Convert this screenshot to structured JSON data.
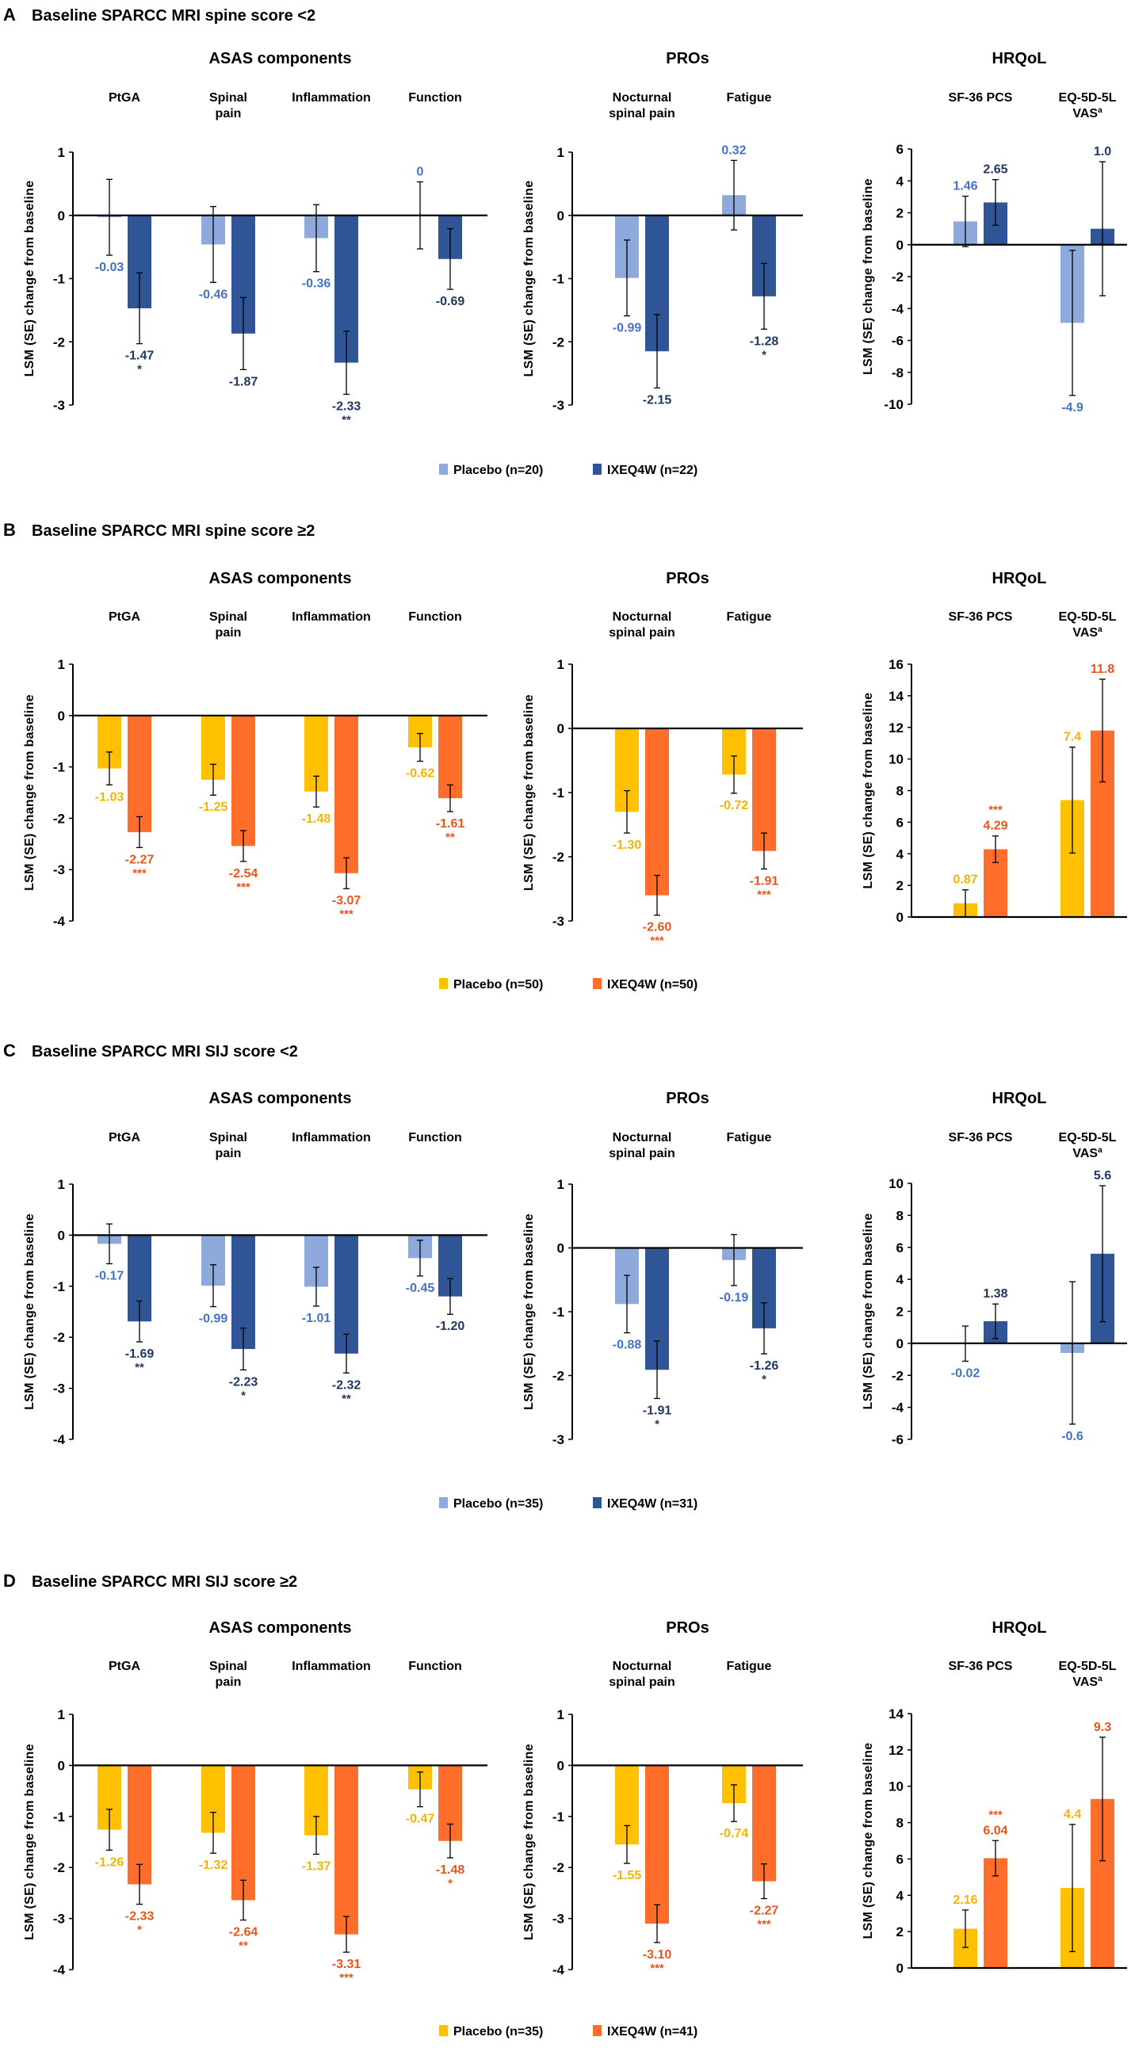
{
  "colors": {
    "blue_placebo": "#8EA9DB",
    "blue_ixe": "#2F5597",
    "blue_placebo_text": "#4472C4",
    "blue_ixe_text": "#203864",
    "yellow_placebo": "#FFC000",
    "orange_ixe": "#FF6D2A",
    "yellow_placebo_text": "#F4B400",
    "orange_ixe_text": "#E8561C"
  },
  "chart_data": [
    {
      "type": "bar",
      "panel": "A",
      "title": "Baseline SPARCC MRI spine score <2",
      "palette": "blue",
      "legend": [
        {
          "name": "Placebo (n=20)",
          "series": "placebo"
        },
        {
          "name": "IXEQ4W (n=22)",
          "series": "ixe"
        }
      ],
      "ylabel": "LSM (SE) change from baseline",
      "groups": [
        {
          "title": "ASAS components",
          "ylim": [
            -3,
            1
          ],
          "yticks": [
            1,
            0,
            -1,
            -2,
            -3
          ],
          "categories": [
            {
              "label": [
                "PtGA"
              ],
              "placebo": {
                "value": -0.03,
                "label": "-0.03",
                "se": 0.6,
                "sig": ""
              },
              "ixe": {
                "value": -1.47,
                "label": "-1.47",
                "se": 0.56,
                "sig": "*"
              }
            },
            {
              "label": [
                "Spinal",
                "pain"
              ],
              "placebo": {
                "value": -0.46,
                "label": "-0.46",
                "se": 0.6,
                "sig": ""
              },
              "ixe": {
                "value": -1.87,
                "label": "-1.87",
                "se": 0.57,
                "sig": ""
              }
            },
            {
              "label": [
                "Inflammation"
              ],
              "placebo": {
                "value": -0.36,
                "label": "-0.36",
                "se": 0.53,
                "sig": ""
              },
              "ixe": {
                "value": -2.33,
                "label": "-2.33",
                "se": 0.5,
                "sig": "**"
              }
            },
            {
              "label": [
                "Function"
              ],
              "placebo": {
                "value": 0,
                "label": "0",
                "se": 0.53,
                "sig": ""
              },
              "ixe": {
                "value": -0.69,
                "label": "-0.69",
                "se": 0.48,
                "sig": ""
              }
            }
          ]
        },
        {
          "title": "PROs",
          "ylim": [
            -3,
            1
          ],
          "yticks": [
            1,
            0,
            -1,
            -2,
            -3
          ],
          "categories": [
            {
              "label": [
                "Nocturnal",
                "spinal pain"
              ],
              "placebo": {
                "value": -0.99,
                "label": "-0.99",
                "se": 0.6,
                "sig": ""
              },
              "ixe": {
                "value": -2.15,
                "label": "-2.15",
                "se": 0.58,
                "sig": ""
              }
            },
            {
              "label": [
                "Fatigue"
              ],
              "placebo": {
                "value": 0.32,
                "label": "0.32",
                "se": 0.55,
                "sig": ""
              },
              "ixe": {
                "value": -1.28,
                "label": "-1.28",
                "se": 0.52,
                "sig": "*"
              }
            }
          ]
        },
        {
          "title": "HRQoL",
          "ylim": [
            -10,
            6
          ],
          "yticks": [
            6,
            4,
            2,
            0,
            -2,
            -4,
            -6,
            -8,
            -10
          ],
          "categories": [
            {
              "label": [
                "SF-36 PCS"
              ],
              "placebo": {
                "value": 1.46,
                "label": "1.46",
                "se": 1.58,
                "sig": ""
              },
              "ixe": {
                "value": 2.65,
                "label": "2.65",
                "se": 1.43,
                "sig": ""
              }
            },
            {
              "label": [
                "EQ-5D-5L",
                "VAS"
              ],
              "superscript": "a",
              "placebo": {
                "value": -4.9,
                "label": "-4.9",
                "se": 4.55,
                "sig": ""
              },
              "ixe": {
                "value": 1.0,
                "label": "1.0",
                "se": 4.2,
                "sig": ""
              }
            }
          ]
        }
      ]
    },
    {
      "type": "bar",
      "panel": "B",
      "title": "Baseline SPARCC MRI spine score ≥2",
      "palette": "orange",
      "legend": [
        {
          "name": "Placebo (n=50)",
          "series": "placebo"
        },
        {
          "name": "IXEQ4W (n=50)",
          "series": "ixe"
        }
      ],
      "ylabel": "LSM (SE) change from baseline",
      "groups": [
        {
          "title": "ASAS components",
          "ylim": [
            -4,
            1
          ],
          "yticks": [
            1,
            0,
            -1,
            -2,
            -3,
            -4
          ],
          "categories": [
            {
              "label": [
                "PtGA"
              ],
              "placebo": {
                "value": -1.03,
                "label": "-1.03",
                "se": 0.32,
                "sig": ""
              },
              "ixe": {
                "value": -2.27,
                "label": "-2.27",
                "se": 0.3,
                "sig": "***"
              }
            },
            {
              "label": [
                "Spinal",
                "pain"
              ],
              "placebo": {
                "value": -1.25,
                "label": "-1.25",
                "se": 0.3,
                "sig": ""
              },
              "ixe": {
                "value": -2.54,
                "label": "-2.54",
                "se": 0.3,
                "sig": "***"
              }
            },
            {
              "label": [
                "Inflammation"
              ],
              "placebo": {
                "value": -1.48,
                "label": "-1.48",
                "se": 0.3,
                "sig": ""
              },
              "ixe": {
                "value": -3.07,
                "label": "-3.07",
                "se": 0.3,
                "sig": "***"
              }
            },
            {
              "label": [
                "Function"
              ],
              "placebo": {
                "value": -0.62,
                "label": "-0.62",
                "se": 0.27,
                "sig": ""
              },
              "ixe": {
                "value": -1.61,
                "label": "-1.61",
                "se": 0.26,
                "sig": "**"
              }
            }
          ]
        },
        {
          "title": "PROs",
          "ylim": [
            -3,
            1
          ],
          "yticks": [
            1,
            0,
            -1,
            -2,
            -3
          ],
          "categories": [
            {
              "label": [
                "Nocturnal",
                "spinal pain"
              ],
              "placebo": {
                "value": -1.3,
                "label": "-1.30",
                "se": 0.33,
                "sig": ""
              },
              "ixe": {
                "value": -2.6,
                "label": "-2.60",
                "se": 0.31,
                "sig": "***"
              }
            },
            {
              "label": [
                "Fatigue"
              ],
              "placebo": {
                "value": -0.72,
                "label": "-0.72",
                "se": 0.29,
                "sig": ""
              },
              "ixe": {
                "value": -1.91,
                "label": "-1.91",
                "se": 0.28,
                "sig": "***"
              }
            }
          ]
        },
        {
          "title": "HRQoL",
          "ylim": [
            0,
            16
          ],
          "yticks": [
            16,
            14,
            12,
            10,
            8,
            6,
            4,
            2,
            0
          ],
          "categories": [
            {
              "label": [
                "SF-36 PCS"
              ],
              "placebo": {
                "value": 0.87,
                "label": "0.87",
                "se": 0.85,
                "sig": ""
              },
              "ixe": {
                "value": 4.29,
                "label": "4.29",
                "se": 0.84,
                "sig": "***"
              }
            },
            {
              "label": [
                "EQ-5D-5L",
                "VAS"
              ],
              "superscript": "a",
              "placebo": {
                "value": 7.4,
                "label": "7.4",
                "se": 3.35,
                "sig": ""
              },
              "ixe": {
                "value": 11.8,
                "label": "11.8",
                "se": 3.25,
                "sig": ""
              }
            }
          ]
        }
      ]
    },
    {
      "type": "bar",
      "panel": "C",
      "title": "Baseline SPARCC MRI SIJ score <2",
      "palette": "blue",
      "legend": [
        {
          "name": "Placebo (n=35)",
          "series": "placebo"
        },
        {
          "name": "IXEQ4W (n=31)",
          "series": "ixe"
        }
      ],
      "ylabel": "LSM (SE) change from baseline",
      "groups": [
        {
          "title": "ASAS components",
          "ylim": [
            -4,
            1
          ],
          "yticks": [
            1,
            0,
            -1,
            -2,
            -3,
            -4
          ],
          "categories": [
            {
              "label": [
                "PtGA"
              ],
              "placebo": {
                "value": -0.17,
                "label": "-0.17",
                "se": 0.39,
                "sig": ""
              },
              "ixe": {
                "value": -1.69,
                "label": "-1.69",
                "se": 0.4,
                "sig": "**"
              }
            },
            {
              "label": [
                "Spinal",
                "pain"
              ],
              "placebo": {
                "value": -0.99,
                "label": "-0.99",
                "se": 0.41,
                "sig": ""
              },
              "ixe": {
                "value": -2.23,
                "label": "-2.23",
                "se": 0.41,
                "sig": "*"
              }
            },
            {
              "label": [
                "Inflammation"
              ],
              "placebo": {
                "value": -1.01,
                "label": "-1.01",
                "se": 0.38,
                "sig": ""
              },
              "ixe": {
                "value": -2.32,
                "label": "-2.32",
                "se": 0.38,
                "sig": "**"
              }
            },
            {
              "label": [
                "Function"
              ],
              "placebo": {
                "value": -0.45,
                "label": "-0.45",
                "se": 0.35,
                "sig": ""
              },
              "ixe": {
                "value": -1.2,
                "label": "-1.20",
                "se": 0.35,
                "sig": ""
              }
            }
          ]
        },
        {
          "title": "PROs",
          "ylim": [
            -3,
            1
          ],
          "yticks": [
            1,
            0,
            -1,
            -2,
            -3
          ],
          "categories": [
            {
              "label": [
                "Nocturnal",
                "spinal pain"
              ],
              "placebo": {
                "value": -0.88,
                "label": "-0.88",
                "se": 0.45,
                "sig": ""
              },
              "ixe": {
                "value": -1.91,
                "label": "-1.91",
                "se": 0.45,
                "sig": "*"
              }
            },
            {
              "label": [
                "Fatigue"
              ],
              "placebo": {
                "value": -0.19,
                "label": "-0.19",
                "se": 0.4,
                "sig": ""
              },
              "ixe": {
                "value": -1.26,
                "label": "-1.26",
                "se": 0.4,
                "sig": "*"
              }
            }
          ]
        },
        {
          "title": "HRQoL",
          "ylim": [
            -6,
            10
          ],
          "yticks": [
            10,
            8,
            6,
            4,
            2,
            0,
            -2,
            -4,
            -6
          ],
          "categories": [
            {
              "label": [
                "SF-36 PCS"
              ],
              "placebo": {
                "value": -0.02,
                "label": "-0.02",
                "se": 1.1,
                "sig": ""
              },
              "ixe": {
                "value": 1.38,
                "label": "1.38",
                "se": 1.08,
                "sig": ""
              }
            },
            {
              "label": [
                "EQ-5D-5L",
                "VAS"
              ],
              "superscript": "a",
              "placebo": {
                "value": -0.6,
                "label": "-0.6",
                "se": 4.45,
                "sig": ""
              },
              "ixe": {
                "value": 5.6,
                "label": "5.6",
                "se": 4.25,
                "sig": ""
              }
            }
          ]
        }
      ]
    },
    {
      "type": "bar",
      "panel": "D",
      "title": "Baseline SPARCC MRI SIJ score ≥2",
      "palette": "orange",
      "legend": [
        {
          "name": "Placebo (n=35)",
          "series": "placebo"
        },
        {
          "name": "IXEQ4W (n=41)",
          "series": "ixe"
        }
      ],
      "ylabel": "LSM (SE) change from baseline",
      "groups": [
        {
          "title": "ASAS components",
          "ylim": [
            -4,
            1
          ],
          "yticks": [
            1,
            0,
            -1,
            -2,
            -3,
            -4
          ],
          "categories": [
            {
              "label": [
                "PtGA"
              ],
              "placebo": {
                "value": -1.26,
                "label": "-1.26",
                "se": 0.4,
                "sig": ""
              },
              "ixe": {
                "value": -2.33,
                "label": "-2.33",
                "se": 0.39,
                "sig": "*"
              }
            },
            {
              "label": [
                "Spinal",
                "pain"
              ],
              "placebo": {
                "value": -1.32,
                "label": "-1.32",
                "se": 0.4,
                "sig": ""
              },
              "ixe": {
                "value": -2.64,
                "label": "-2.64",
                "se": 0.39,
                "sig": "**"
              }
            },
            {
              "label": [
                "Inflammation"
              ],
              "placebo": {
                "value": -1.37,
                "label": "-1.37",
                "se": 0.37,
                "sig": ""
              },
              "ixe": {
                "value": -3.31,
                "label": "-3.31",
                "se": 0.35,
                "sig": "***"
              }
            },
            {
              "label": [
                "Function"
              ],
              "placebo": {
                "value": -0.47,
                "label": "-0.47",
                "se": 0.34,
                "sig": ""
              },
              "ixe": {
                "value": -1.48,
                "label": "-1.48",
                "se": 0.33,
                "sig": "*"
              }
            }
          ]
        },
        {
          "title": "PROs",
          "ylim": [
            -4,
            1
          ],
          "yticks": [
            1,
            0,
            -1,
            -2,
            -3,
            -4
          ],
          "categories": [
            {
              "label": [
                "Nocturnal",
                "spinal pain"
              ],
              "placebo": {
                "value": -1.55,
                "label": "-1.55",
                "se": 0.37,
                "sig": ""
              },
              "ixe": {
                "value": -3.1,
                "label": "-3.10",
                "se": 0.37,
                "sig": "***"
              }
            },
            {
              "label": [
                "Fatigue"
              ],
              "placebo": {
                "value": -0.74,
                "label": "-0.74",
                "se": 0.36,
                "sig": ""
              },
              "ixe": {
                "value": -2.27,
                "label": "-2.27",
                "se": 0.34,
                "sig": "***"
              }
            }
          ]
        },
        {
          "title": "HRQoL",
          "ylim": [
            0,
            14
          ],
          "yticks": [
            14,
            12,
            10,
            8,
            6,
            4,
            2,
            0
          ],
          "categories": [
            {
              "label": [
                "SF-36 PCS"
              ],
              "placebo": {
                "value": 2.16,
                "label": "2.16",
                "se": 1.03,
                "sig": ""
              },
              "ixe": {
                "value": 6.04,
                "label": "6.04",
                "se": 0.97,
                "sig": "***"
              }
            },
            {
              "label": [
                "EQ-5D-5L",
                "VAS"
              ],
              "superscript": "a",
              "placebo": {
                "value": 4.4,
                "label": "4.4",
                "se": 3.5,
                "sig": ""
              },
              "ixe": {
                "value": 9.3,
                "label": "9.3",
                "se": 3.4,
                "sig": ""
              }
            }
          ]
        }
      ]
    }
  ]
}
